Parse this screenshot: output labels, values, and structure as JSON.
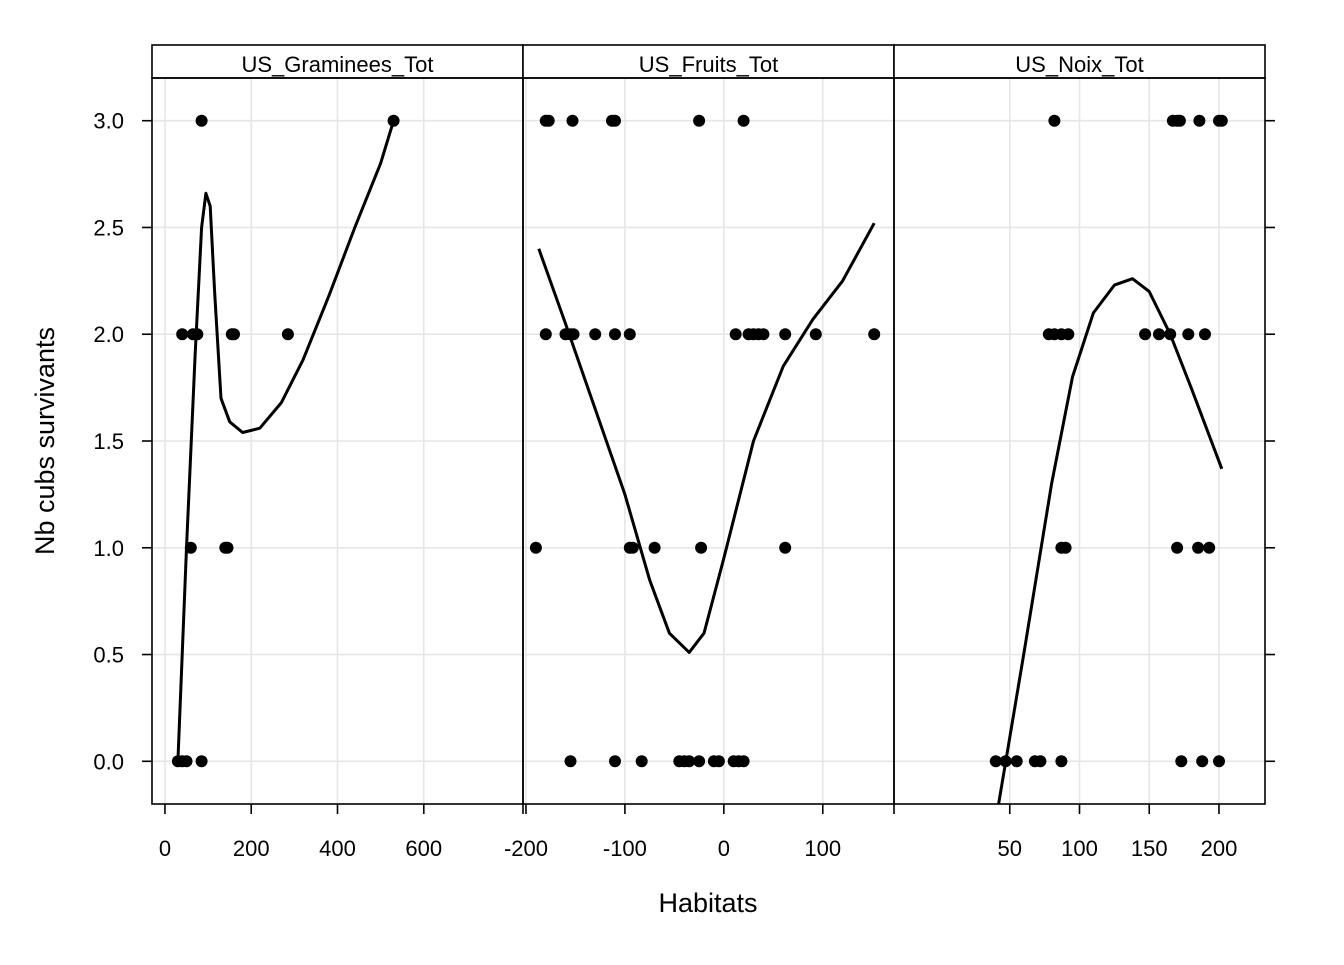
{
  "chart_data": {
    "type": "scatter",
    "xlabel": "Habitats",
    "ylabel": "Nb cubs survivants",
    "ylim": [
      -0.2,
      3.2
    ],
    "y_ticks": [
      "0.0",
      "0.5",
      "1.0",
      "1.5",
      "2.0",
      "2.5",
      "3.0"
    ],
    "y_tick_values": [
      0,
      0.5,
      1,
      1.5,
      2,
      2.5,
      3
    ],
    "grid": true,
    "panels": [
      {
        "strip": "US_Graminees_Tot",
        "xlim": [
          -30,
          830
        ],
        "x_ticks": [
          "0",
          "200",
          "400",
          "600"
        ],
        "x_tick_values": [
          0,
          200,
          400,
          600
        ],
        "points": [
          [
            30,
            0
          ],
          [
            40,
            0
          ],
          [
            50,
            0
          ],
          [
            85,
            0
          ],
          [
            60,
            1
          ],
          [
            140,
            1
          ],
          [
            145,
            1
          ],
          [
            40,
            2
          ],
          [
            65,
            2
          ],
          [
            75,
            2
          ],
          [
            155,
            2
          ],
          [
            160,
            2
          ],
          [
            285,
            2
          ],
          [
            85,
            3
          ],
          [
            530,
            3
          ]
        ],
        "smooth": [
          [
            30,
            0
          ],
          [
            50,
            1.0
          ],
          [
            70,
            1.9
          ],
          [
            85,
            2.5
          ],
          [
            95,
            2.66
          ],
          [
            105,
            2.6
          ],
          [
            115,
            2.2
          ],
          [
            130,
            1.7
          ],
          [
            150,
            1.59
          ],
          [
            180,
            1.54
          ],
          [
            220,
            1.56
          ],
          [
            270,
            1.68
          ],
          [
            320,
            1.88
          ],
          [
            380,
            2.18
          ],
          [
            440,
            2.5
          ],
          [
            500,
            2.8
          ],
          [
            530,
            3.0
          ]
        ]
      },
      {
        "strip": "US_Fruits_Tot",
        "xlim": [
          -203,
          172
        ],
        "x_ticks": [
          "-200",
          "-100",
          "0",
          "100"
        ],
        "x_tick_values": [
          -200,
          -100,
          0,
          100
        ],
        "points": [
          [
            -155,
            0
          ],
          [
            -110,
            0
          ],
          [
            -83,
            0
          ],
          [
            -45,
            0
          ],
          [
            -40,
            0
          ],
          [
            -35,
            0
          ],
          [
            -25,
            0
          ],
          [
            -10,
            0
          ],
          [
            -5,
            0
          ],
          [
            10,
            0
          ],
          [
            15,
            0
          ],
          [
            20,
            0
          ],
          [
            -190,
            1
          ],
          [
            -95,
            1
          ],
          [
            -92,
            1
          ],
          [
            -70,
            1
          ],
          [
            -23,
            1
          ],
          [
            62,
            1
          ],
          [
            -180,
            2
          ],
          [
            -160,
            2
          ],
          [
            -155,
            2
          ],
          [
            -152,
            2
          ],
          [
            -130,
            2
          ],
          [
            -110,
            2
          ],
          [
            -95,
            2
          ],
          [
            12,
            2
          ],
          [
            25,
            2
          ],
          [
            30,
            2
          ],
          [
            35,
            2
          ],
          [
            40,
            2
          ],
          [
            62,
            2
          ],
          [
            93,
            2
          ],
          [
            152,
            2
          ],
          [
            -180,
            3
          ],
          [
            -177,
            3
          ],
          [
            -153,
            3
          ],
          [
            -113,
            3
          ],
          [
            -110,
            3
          ],
          [
            -25,
            3
          ],
          [
            20,
            3
          ]
        ],
        "smooth": [
          [
            -187,
            2.4
          ],
          [
            -160,
            2.05
          ],
          [
            -130,
            1.65
          ],
          [
            -100,
            1.25
          ],
          [
            -75,
            0.85
          ],
          [
            -55,
            0.6
          ],
          [
            -35,
            0.51
          ],
          [
            -20,
            0.6
          ],
          [
            0,
            0.95
          ],
          [
            30,
            1.5
          ],
          [
            60,
            1.85
          ],
          [
            90,
            2.07
          ],
          [
            120,
            2.25
          ],
          [
            152,
            2.52
          ]
        ]
      },
      {
        "strip": "US_Noix_Tot",
        "xlim": [
          -33,
          233
        ],
        "x_ticks": [
          "50",
          "100",
          "150",
          "200"
        ],
        "x_tick_values": [
          50,
          100,
          150,
          200
        ],
        "points": [
          [
            40,
            0
          ],
          [
            47,
            0
          ],
          [
            55,
            0
          ],
          [
            68,
            0
          ],
          [
            72,
            0
          ],
          [
            87,
            0
          ],
          [
            173,
            0
          ],
          [
            188,
            0
          ],
          [
            200,
            0
          ],
          [
            87,
            1
          ],
          [
            90,
            1
          ],
          [
            170,
            1
          ],
          [
            185,
            1
          ],
          [
            193,
            1
          ],
          [
            78,
            2
          ],
          [
            82,
            2
          ],
          [
            87,
            2
          ],
          [
            92,
            2
          ],
          [
            147,
            2
          ],
          [
            157,
            2
          ],
          [
            165,
            2
          ],
          [
            178,
            2
          ],
          [
            190,
            2
          ],
          [
            82,
            3
          ],
          [
            167,
            3
          ],
          [
            170,
            3
          ],
          [
            172,
            3
          ],
          [
            186,
            3
          ],
          [
            200,
            3
          ],
          [
            202,
            3
          ]
        ],
        "smooth": [
          [
            42,
            -0.2
          ],
          [
            60,
            0.5
          ],
          [
            80,
            1.3
          ],
          [
            95,
            1.8
          ],
          [
            110,
            2.1
          ],
          [
            125,
            2.23
          ],
          [
            138,
            2.26
          ],
          [
            150,
            2.2
          ],
          [
            165,
            2.0
          ],
          [
            180,
            1.75
          ],
          [
            202,
            1.37
          ]
        ]
      }
    ]
  }
}
